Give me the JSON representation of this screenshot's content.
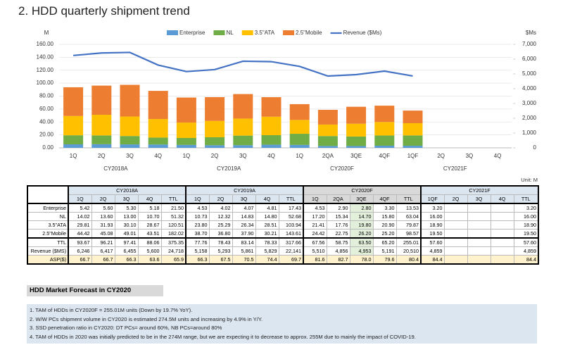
{
  "title": "2. HDD quarterly shipment trend",
  "chart_data": {
    "type": "bar",
    "stacked": true,
    "y_unit_label": "M",
    "y2_unit_label": "$Ms",
    "categories": [
      "1Q",
      "2Q",
      "3Q",
      "4Q",
      "1Q",
      "2Q",
      "3Q",
      "4Q",
      "1Q",
      "2QA",
      "3QE",
      "4QF",
      "1QF",
      "2Q",
      "3Q",
      "4Q"
    ],
    "category_groups": [
      "CY2018A",
      "CY2019A",
      "CY2020F",
      "CY2021F"
    ],
    "series": [
      {
        "name": "Enterprise",
        "color": "#5b9bd5",
        "values": [
          5.42,
          5.6,
          5.3,
          5.18,
          4.53,
          4.02,
          4.07,
          4.81,
          4.53,
          2.9,
          2.8,
          3.3,
          3.2,
          null,
          null,
          null
        ]
      },
      {
        "name": "NL",
        "color": "#70ad47",
        "values": [
          14.02,
          13.6,
          13.0,
          10.7,
          10.73,
          12.32,
          14.83,
          14.8,
          17.2,
          15.34,
          14.7,
          15.8,
          16.0,
          null,
          null,
          null
        ]
      },
      {
        "name": "3.5\"ATA",
        "color": "#ffc000",
        "values": [
          29.81,
          31.93,
          30.1,
          28.67,
          23.8,
          25.29,
          26.34,
          28.51,
          21.41,
          17.76,
          19.8,
          20.9,
          18.9,
          null,
          null,
          null
        ]
      },
      {
        "name": "2.5\"Mobile",
        "color": "#ed7d31",
        "values": [
          44.42,
          45.08,
          49.01,
          43.51,
          38.7,
          36.8,
          37.9,
          30.21,
          24.42,
          22.75,
          26.2,
          25.2,
          19.5,
          null,
          null,
          null
        ]
      },
      {
        "name": "Revenue ($Ms)",
        "type": "line",
        "axis": "y2",
        "color": "#4472c4",
        "values": [
          6246,
          6417,
          6455,
          5600,
          5158,
          5293,
          5861,
          5829,
          5510,
          4856,
          4953,
          5191,
          4859,
          null,
          null,
          null
        ]
      }
    ],
    "ylim": [
      0,
      160
    ],
    "yticks": [
      {
        "value": 0,
        "label": "0.00"
      },
      {
        "value": 20,
        "label": "20.00"
      },
      {
        "value": 40,
        "label": "40.00"
      },
      {
        "value": 60,
        "label": "60.00"
      },
      {
        "value": 80,
        "label": "80.00"
      },
      {
        "value": 100,
        "label": "100.00"
      },
      {
        "value": 120,
        "label": "120.00"
      },
      {
        "value": 140,
        "label": "140.00"
      },
      {
        "value": 160,
        "label": "160.00"
      }
    ],
    "y2lim": [
      0,
      7000
    ],
    "y2ticks": [
      0,
      {
        "value": 1000,
        "label": "1,000"
      },
      {
        "value": 2000,
        "label": "2,000"
      },
      {
        "value": 3000,
        "label": "3,000"
      },
      {
        "value": 4000,
        "label": "4,000"
      },
      {
        "value": 5000,
        "label": "5,000"
      },
      {
        "value": 6000,
        "label": "6,000"
      },
      {
        "value": 7000,
        "label": "7,000"
      }
    ],
    "grid": true,
    "legend": "top"
  },
  "unit_note": "Unit: M",
  "table": {
    "total_label": "TTL",
    "rows": [
      {
        "label": "Enterprise",
        "cells": [
          "5.42",
          "5.60",
          "5.30",
          "5.18",
          "21.50",
          "4.53",
          "4.02",
          "4.07",
          "4.81",
          "17.43",
          "4.53",
          "2.90",
          "2.80",
          "3.30",
          "13.53",
          "3.20",
          null,
          null,
          null,
          "3.20"
        ]
      },
      {
        "label": "NL",
        "cells": [
          "14.02",
          "13.60",
          "13.00",
          "10.70",
          "51.32",
          "10.73",
          "12.32",
          "14.83",
          "14.80",
          "52.68",
          "17.20",
          "15.34",
          "14.70",
          "15.80",
          "63.04",
          "16.00",
          null,
          null,
          null,
          "16.00"
        ]
      },
      {
        "label": "3.5\"ATA",
        "cells": [
          "29.81",
          "31.93",
          "30.10",
          "28.67",
          "120.51",
          "23.80",
          "25.29",
          "26.34",
          "28.51",
          "103.94",
          "21.41",
          "17.76",
          "19.80",
          "20.90",
          "79.87",
          "18.90",
          null,
          null,
          null,
          "18.90"
        ]
      },
      {
        "label": "2.5\"Mobile",
        "cells": [
          "44.42",
          "45.08",
          "49.01",
          "43.51",
          "182.02",
          "38.70",
          "36.80",
          "37.90",
          "30.21",
          "143.61",
          "24.42",
          "22.75",
          "26.20",
          "25.20",
          "98.57",
          "19.50",
          null,
          null,
          null,
          "19.50"
        ]
      },
      {
        "label": "TTL",
        "cells": [
          "93.67",
          "96.21",
          "97.41",
          "88.06",
          "375.35",
          "77.76",
          "78.43",
          "83.14",
          "78.33",
          "317.66",
          "67.56",
          "58.75",
          "63.50",
          "65.20",
          "255.01",
          "57.60",
          null,
          null,
          null,
          "57.60"
        ]
      },
      {
        "label": "Revenue ($MS)",
        "cells": [
          "6,246",
          "6,417",
          "6,455",
          "5,600",
          "24,718",
          "5,158",
          "5,293",
          "5,861",
          "5,829",
          "22,141",
          "5,510",
          "4,856",
          "4,953",
          "5,191",
          "20,510",
          "4,859",
          null,
          null,
          null,
          "4,859"
        ]
      },
      {
        "label": "ASP($)",
        "cells": [
          "66.7",
          "66.7",
          "66.3",
          "63.6",
          "65.9",
          "66.3",
          "67.5",
          "70.5",
          "74.4",
          "69.7",
          "81.6",
          "82.7",
          "78.0",
          "79.6",
          "80.4",
          "84.4",
          null,
          null,
          null,
          "84.4"
        ]
      }
    ]
  },
  "forecast": {
    "title": "HDD Market Forecast in CY2020",
    "notes": [
      "1. TAM of HDDs in CY2020F = 255.01M units (Down by 19.7% YoY).",
      "2. W/W PCs shipment volume in CY2020 is estimated 274.5M units and increasing by 4.9% in Y/Y.",
      "3. SSD penetration ratio in CY2020: DT PCs= around 60%, NB PCs=around 80%",
      "4. TAM of HDDs in 2020 was initially predicted to be in the 274M range, but we are expecting it to decrease to approx. 255M due to mainly the impact of COVID-19."
    ]
  }
}
